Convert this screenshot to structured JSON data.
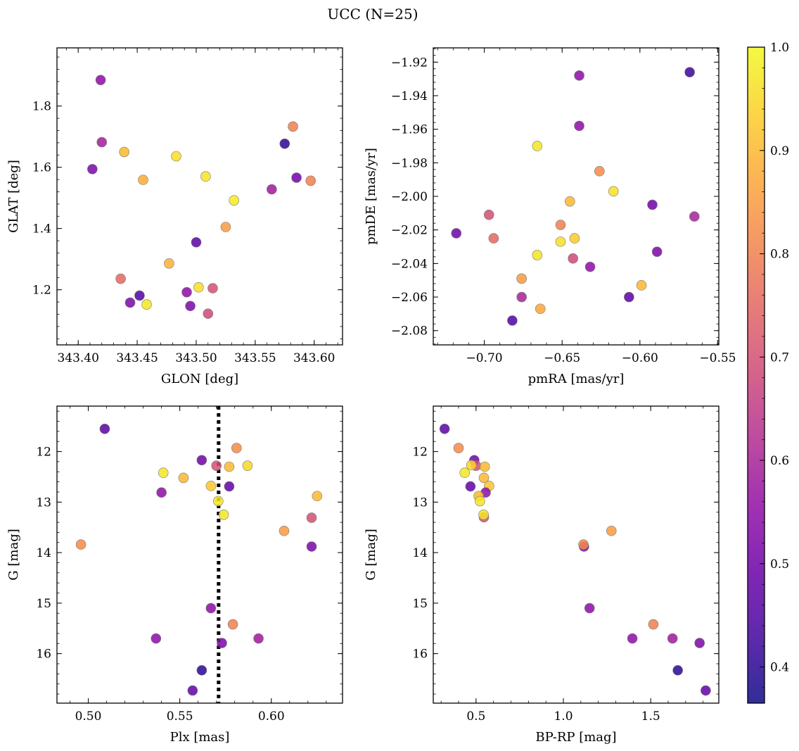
{
  "title": "UCC (N=25)",
  "colors": {
    "marker_edge": "#7a7a7a",
    "frame": "#000000",
    "median_line": "#000000"
  },
  "colorbar": {
    "cmap": "plasma",
    "vmin": 0.365,
    "vmax": 1.0,
    "alpha": 0.85,
    "ticks": [
      0.4,
      0.5,
      0.6,
      0.7,
      0.8,
      0.9,
      1.0
    ],
    "tick_labels": [
      "0.4",
      "0.5",
      "0.6",
      "0.7",
      "0.8",
      "0.9",
      "1.0"
    ]
  },
  "chart_data": [
    {
      "type": "scatter",
      "xlabel": "GLON [deg]",
      "ylabel": "GLAT [deg]",
      "xlim": [
        343.382,
        343.624
      ],
      "ylim": [
        1.02,
        1.99
      ],
      "invert_y": false,
      "xticks": [
        343.4,
        343.45,
        343.5,
        343.55,
        343.6
      ],
      "xtick_labels": [
        "343.40",
        "343.45",
        "343.50",
        "343.55",
        "343.60"
      ],
      "yticks": [
        1.2,
        1.4,
        1.6,
        1.8
      ],
      "ytick_labels": [
        "1.2",
        "1.4",
        "1.6",
        "1.8"
      ],
      "points": [
        {
          "x": 343.419,
          "y": 1.885,
          "c": 0.55
        },
        {
          "x": 343.42,
          "y": 1.682,
          "c": 0.59
        },
        {
          "x": 343.412,
          "y": 1.594,
          "c": 0.52
        },
        {
          "x": 343.439,
          "y": 1.65,
          "c": 0.9
        },
        {
          "x": 343.455,
          "y": 1.559,
          "c": 0.88
        },
        {
          "x": 343.483,
          "y": 1.636,
          "c": 0.96
        },
        {
          "x": 343.508,
          "y": 1.57,
          "c": 0.97
        },
        {
          "x": 343.532,
          "y": 1.492,
          "c": 0.98
        },
        {
          "x": 343.525,
          "y": 1.405,
          "c": 0.85
        },
        {
          "x": 343.575,
          "y": 1.677,
          "c": 0.4
        },
        {
          "x": 343.582,
          "y": 1.733,
          "c": 0.8
        },
        {
          "x": 343.585,
          "y": 1.566,
          "c": 0.5
        },
        {
          "x": 343.597,
          "y": 1.556,
          "c": 0.8
        },
        {
          "x": 343.564,
          "y": 1.528,
          "c": 0.58
        },
        {
          "x": 343.5,
          "y": 1.355,
          "c": 0.47
        },
        {
          "x": 343.477,
          "y": 1.286,
          "c": 0.89
        },
        {
          "x": 343.436,
          "y": 1.236,
          "c": 0.75
        },
        {
          "x": 343.452,
          "y": 1.181,
          "c": 0.45
        },
        {
          "x": 343.444,
          "y": 1.158,
          "c": 0.52
        },
        {
          "x": 343.458,
          "y": 1.152,
          "c": 0.97
        },
        {
          "x": 343.492,
          "y": 1.192,
          "c": 0.55
        },
        {
          "x": 343.502,
          "y": 1.208,
          "c": 0.96
        },
        {
          "x": 343.514,
          "y": 1.205,
          "c": 0.7
        },
        {
          "x": 343.495,
          "y": 1.147,
          "c": 0.52
        },
        {
          "x": 343.51,
          "y": 1.122,
          "c": 0.68
        }
      ]
    },
    {
      "type": "scatter",
      "xlabel": "pmRA [mas/yr]",
      "ylabel": "pmDE [mas/yr]",
      "xlim": [
        -0.7328,
        -0.5493
      ],
      "ylim": [
        -2.0885,
        -1.9115
      ],
      "invert_y": false,
      "xticks": [
        -0.7,
        -0.65,
        -0.6,
        -0.55
      ],
      "xtick_labels": [
        "−0.70",
        "−0.65",
        "−0.60",
        "−0.55"
      ],
      "yticks": [
        -2.08,
        -2.06,
        -2.04,
        -2.02,
        -2.0,
        -1.98,
        -1.96,
        -1.94,
        -1.92
      ],
      "ytick_labels": [
        "−2.08",
        "−2.06",
        "−2.04",
        "−2.02",
        "−2.00",
        "−1.98",
        "−1.96",
        "−1.94",
        "−1.92"
      ],
      "points": [
        {
          "x": -0.639,
          "y": -1.928,
          "c": 0.55
        },
        {
          "x": -0.568,
          "y": -1.926,
          "c": 0.42
        },
        {
          "x": -0.639,
          "y": -1.958,
          "c": 0.55
        },
        {
          "x": -0.666,
          "y": -1.97,
          "c": 0.97
        },
        {
          "x": -0.626,
          "y": -1.985,
          "c": 0.82
        },
        {
          "x": -0.617,
          "y": -1.997,
          "c": 0.96
        },
        {
          "x": -0.645,
          "y": -2.003,
          "c": 0.9
        },
        {
          "x": -0.592,
          "y": -2.005,
          "c": 0.5
        },
        {
          "x": -0.697,
          "y": -2.011,
          "c": 0.7
        },
        {
          "x": -0.565,
          "y": -2.012,
          "c": 0.6
        },
        {
          "x": -0.651,
          "y": -2.017,
          "c": 0.8
        },
        {
          "x": -0.718,
          "y": -2.022,
          "c": 0.5
        },
        {
          "x": -0.694,
          "y": -2.025,
          "c": 0.75
        },
        {
          "x": -0.642,
          "y": -2.025,
          "c": 0.93
        },
        {
          "x": -0.651,
          "y": -2.027,
          "c": 0.96
        },
        {
          "x": -0.589,
          "y": -2.033,
          "c": 0.52
        },
        {
          "x": -0.666,
          "y": -2.035,
          "c": 0.97
        },
        {
          "x": -0.643,
          "y": -2.037,
          "c": 0.68
        },
        {
          "x": -0.632,
          "y": -2.042,
          "c": 0.55
        },
        {
          "x": -0.676,
          "y": -2.049,
          "c": 0.85
        },
        {
          "x": -0.599,
          "y": -2.053,
          "c": 0.9
        },
        {
          "x": -0.676,
          "y": -2.06,
          "c": 0.6
        },
        {
          "x": -0.607,
          "y": -2.06,
          "c": 0.47
        },
        {
          "x": -0.664,
          "y": -2.067,
          "c": 0.87
        },
        {
          "x": -0.682,
          "y": -2.074,
          "c": 0.45
        }
      ]
    },
    {
      "type": "scatter",
      "xlabel": "Plx [mas]",
      "ylabel": "G [mag]",
      "xlim": [
        0.4829,
        0.6389
      ],
      "ylim": [
        11.1,
        16.98
      ],
      "invert_y": true,
      "median_x": 0.5712,
      "xticks": [
        0.5,
        0.55,
        0.6
      ],
      "xtick_labels": [
        "0.50",
        "0.55",
        "0.60"
      ],
      "yticks": [
        12,
        13,
        14,
        15,
        16
      ],
      "ytick_labels": [
        "12",
        "13",
        "14",
        "15",
        "16"
      ],
      "points": [
        {
          "x": 0.509,
          "y": 11.55,
          "c": 0.47
        },
        {
          "x": 0.581,
          "y": 11.93,
          "c": 0.82
        },
        {
          "x": 0.562,
          "y": 12.17,
          "c": 0.5
        },
        {
          "x": 0.57,
          "y": 12.28,
          "c": 0.7
        },
        {
          "x": 0.577,
          "y": 12.3,
          "c": 0.9
        },
        {
          "x": 0.587,
          "y": 12.28,
          "c": 0.95
        },
        {
          "x": 0.541,
          "y": 12.42,
          "c": 0.97
        },
        {
          "x": 0.552,
          "y": 12.52,
          "c": 0.9
        },
        {
          "x": 0.567,
          "y": 12.68,
          "c": 0.92
        },
        {
          "x": 0.577,
          "y": 12.69,
          "c": 0.48
        },
        {
          "x": 0.54,
          "y": 12.81,
          "c": 0.55
        },
        {
          "x": 0.625,
          "y": 12.88,
          "c": 0.9
        },
        {
          "x": 0.571,
          "y": 12.98,
          "c": 0.97
        },
        {
          "x": 0.574,
          "y": 13.25,
          "c": 0.97
        },
        {
          "x": 0.622,
          "y": 13.31,
          "c": 0.7
        },
        {
          "x": 0.607,
          "y": 13.57,
          "c": 0.85
        },
        {
          "x": 0.496,
          "y": 13.84,
          "c": 0.82
        },
        {
          "x": 0.622,
          "y": 13.88,
          "c": 0.52
        },
        {
          "x": 0.567,
          "y": 15.1,
          "c": 0.55
        },
        {
          "x": 0.579,
          "y": 15.42,
          "c": 0.8
        },
        {
          "x": 0.537,
          "y": 15.7,
          "c": 0.55
        },
        {
          "x": 0.593,
          "y": 15.7,
          "c": 0.58
        },
        {
          "x": 0.573,
          "y": 15.79,
          "c": 0.52
        },
        {
          "x": 0.562,
          "y": 16.33,
          "c": 0.4
        },
        {
          "x": 0.557,
          "y": 16.73,
          "c": 0.48
        }
      ]
    },
    {
      "type": "scatter",
      "xlabel": "BP-RP [mag]",
      "ylabel": "G [mag]",
      "xlim": [
        0.255,
        1.89
      ],
      "ylim": [
        11.1,
        16.98
      ],
      "invert_y": true,
      "xticks": [
        0.5,
        1.0,
        1.5
      ],
      "xtick_labels": [
        "0.5",
        "1.0",
        "1.5"
      ],
      "yticks": [
        12,
        13,
        14,
        15,
        16
      ],
      "ytick_labels": [
        "12",
        "13",
        "14",
        "15",
        "16"
      ],
      "points": [
        {
          "x": 0.32,
          "y": 11.55,
          "c": 0.47
        },
        {
          "x": 0.4,
          "y": 11.93,
          "c": 0.82
        },
        {
          "x": 0.49,
          "y": 12.17,
          "c": 0.5
        },
        {
          "x": 0.5,
          "y": 12.28,
          "c": 0.7
        },
        {
          "x": 0.473,
          "y": 12.27,
          "c": 0.95
        },
        {
          "x": 0.55,
          "y": 12.3,
          "c": 0.9
        },
        {
          "x": 0.435,
          "y": 12.42,
          "c": 0.97
        },
        {
          "x": 0.545,
          "y": 12.52,
          "c": 0.9
        },
        {
          "x": 0.468,
          "y": 12.69,
          "c": 0.48
        },
        {
          "x": 0.575,
          "y": 12.68,
          "c": 0.92
        },
        {
          "x": 0.555,
          "y": 12.81,
          "c": 0.55
        },
        {
          "x": 0.515,
          "y": 12.88,
          "c": 0.9
        },
        {
          "x": 0.522,
          "y": 12.98,
          "c": 0.97
        },
        {
          "x": 0.545,
          "y": 13.3,
          "c": 0.7
        },
        {
          "x": 0.543,
          "y": 13.25,
          "c": 0.97
        },
        {
          "x": 1.275,
          "y": 13.57,
          "c": 0.85
        },
        {
          "x": 1.118,
          "y": 13.88,
          "c": 0.52
        },
        {
          "x": 1.115,
          "y": 13.84,
          "c": 0.82
        },
        {
          "x": 1.15,
          "y": 15.1,
          "c": 0.55
        },
        {
          "x": 1.515,
          "y": 15.42,
          "c": 0.8
        },
        {
          "x": 1.395,
          "y": 15.7,
          "c": 0.55
        },
        {
          "x": 1.625,
          "y": 15.7,
          "c": 0.58
        },
        {
          "x": 1.78,
          "y": 15.79,
          "c": 0.52
        },
        {
          "x": 1.655,
          "y": 16.33,
          "c": 0.4
        },
        {
          "x": 1.815,
          "y": 16.73,
          "c": 0.48
        }
      ]
    }
  ]
}
